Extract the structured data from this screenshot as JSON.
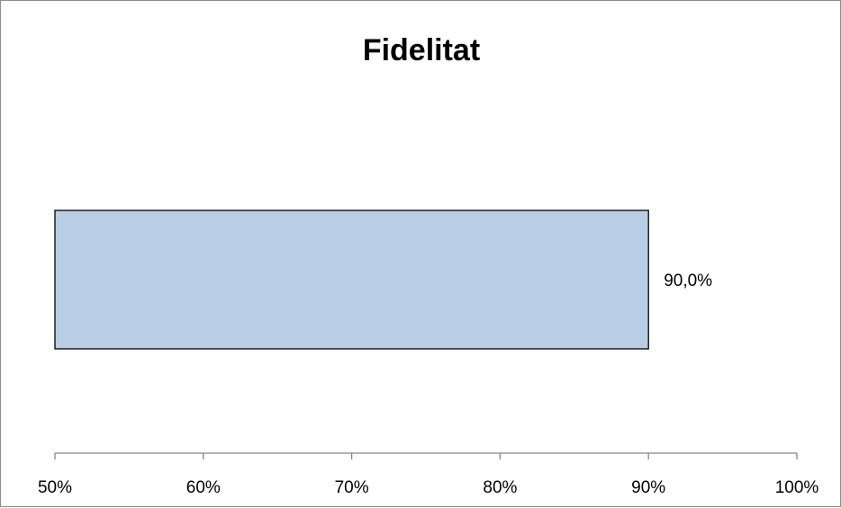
{
  "chart_data": {
    "type": "bar",
    "orientation": "horizontal",
    "title": "Fidelitat",
    "xlabel": "",
    "ylabel": "",
    "categories": [
      ""
    ],
    "values": [
      0.9
    ],
    "data_labels": [
      "90,0%"
    ],
    "xlim": [
      0.5,
      1.0
    ],
    "x_ticks": [
      0.5,
      0.6,
      0.7,
      0.8,
      0.9,
      1.0
    ],
    "x_tick_labels": [
      "50%",
      "60%",
      "70%",
      "80%",
      "90%",
      "100%"
    ],
    "grid": false,
    "legend": "none",
    "colors": {
      "bar_fill": "#b9cde5",
      "bar_stroke": "#000000",
      "axis": "#868686"
    }
  }
}
